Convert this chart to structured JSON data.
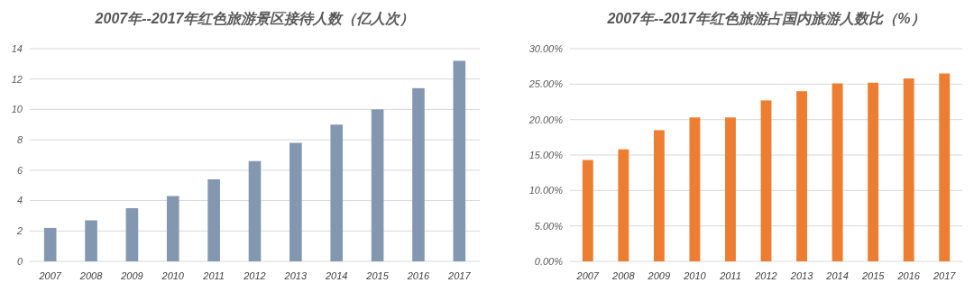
{
  "chart_data": [
    {
      "type": "bar",
      "title": "2007年--2017年红色旅游景区接待人数（亿人次）",
      "categories": [
        "2007",
        "2008",
        "2009",
        "2010",
        "2011",
        "2012",
        "2013",
        "2014",
        "2015",
        "2016",
        "2017"
      ],
      "values": [
        2.2,
        2.7,
        3.5,
        4.3,
        5.4,
        6.6,
        7.8,
        9.0,
        10.0,
        11.4,
        13.2
      ],
      "color": "#8497b0",
      "ylim": [
        0,
        14
      ],
      "yticks": [
        0,
        2,
        4,
        6,
        8,
        10,
        12,
        14
      ],
      "grid": "y"
    },
    {
      "type": "bar",
      "title": "2007年--2017年红色旅游占国内旅游人数比（%）",
      "categories": [
        "2007",
        "2008",
        "2009",
        "2010",
        "2011",
        "2012",
        "2013",
        "2014",
        "2015",
        "2016",
        "2017"
      ],
      "values": [
        14.3,
        15.8,
        18.5,
        20.3,
        20.3,
        22.7,
        24.0,
        25.1,
        25.2,
        25.8,
        26.5
      ],
      "color": "#ed7d31",
      "ylim": [
        0,
        30
      ],
      "yticks": [
        {
          "value": 0,
          "label": "0.00%"
        },
        {
          "value": 5,
          "label": "5.00%"
        },
        {
          "value": 10,
          "label": "10.00%"
        },
        {
          "value": 15,
          "label": "15.00%"
        },
        {
          "value": 20,
          "label": "20.00%"
        },
        {
          "value": 25,
          "label": "25.00%"
        },
        {
          "value": 30,
          "label": "30.00%"
        }
      ],
      "grid": "y"
    }
  ]
}
